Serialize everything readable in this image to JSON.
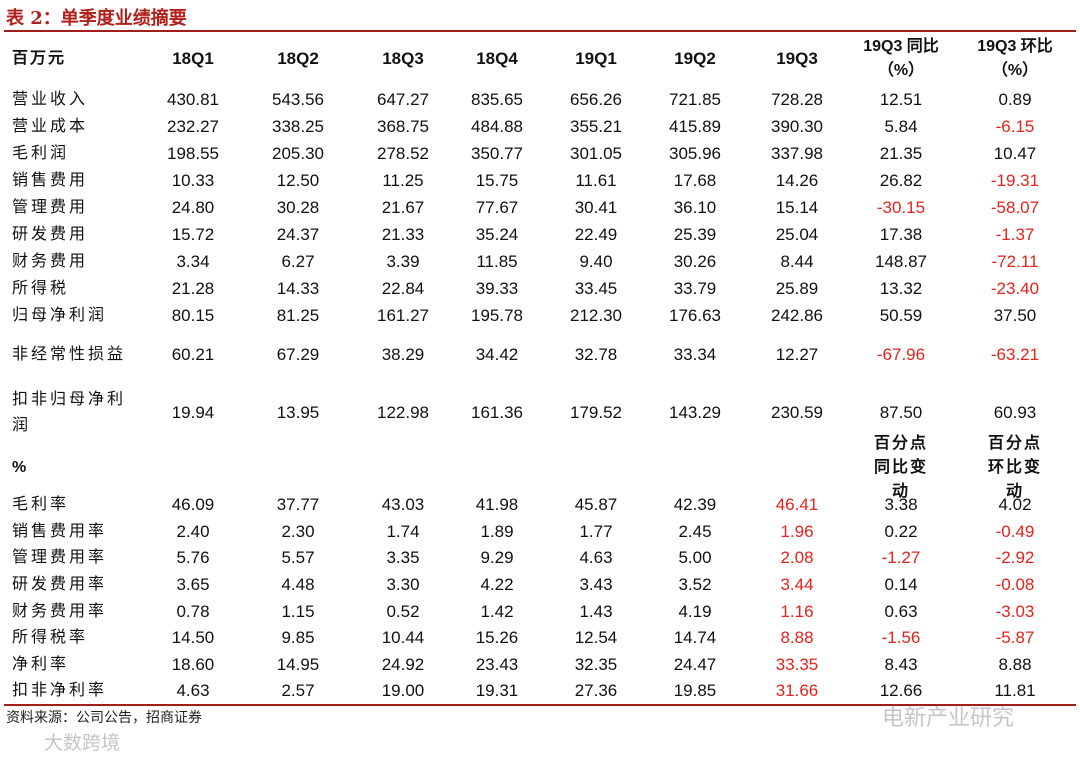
{
  "title": "表 2：单季度业绩摘要",
  "table": {
    "header": [
      "百万元",
      "18Q1",
      "18Q2",
      "18Q3",
      "18Q4",
      "19Q1",
      "19Q2",
      "19Q3",
      "19Q3 同比（%）",
      "19Q3 环比（%）"
    ],
    "rows": [
      [
        "营业收入",
        "430.81",
        "543.56",
        "647.27",
        "835.65",
        "656.26",
        "721.85",
        "728.28",
        "12.51",
        "0.89"
      ],
      [
        "营业成本",
        "232.27",
        "338.25",
        "368.75",
        "484.88",
        "355.21",
        "415.89",
        "390.30",
        "5.84",
        "-6.15"
      ],
      [
        "毛利润",
        "198.55",
        "205.30",
        "278.52",
        "350.77",
        "301.05",
        "305.96",
        "337.98",
        "21.35",
        "10.47"
      ],
      [
        "销售费用",
        "10.33",
        "12.50",
        "11.25",
        "15.75",
        "11.61",
        "17.68",
        "14.26",
        "26.82",
        "-19.31"
      ],
      [
        "管理费用",
        "24.80",
        "30.28",
        "21.67",
        "77.67",
        "30.41",
        "36.10",
        "15.14",
        "-30.15",
        "-58.07"
      ],
      [
        "研发费用",
        "15.72",
        "24.37",
        "21.33",
        "35.24",
        "22.49",
        "25.39",
        "25.04",
        "17.38",
        "-1.37"
      ],
      [
        "财务费用",
        "3.34",
        "6.27",
        "3.39",
        "11.85",
        "9.40",
        "30.26",
        "8.44",
        "148.87",
        "-72.11"
      ],
      [
        "所得税",
        "21.28",
        "14.33",
        "22.84",
        "39.33",
        "33.45",
        "33.79",
        "25.89",
        "13.32",
        "-23.40"
      ],
      [
        "归母净利润",
        "80.15",
        "81.25",
        "161.27",
        "195.78",
        "212.30",
        "176.63",
        "242.86",
        "50.59",
        "37.50"
      ],
      [
        "非经常性损益",
        "60.21",
        "67.29",
        "38.29",
        "34.42",
        "32.78",
        "33.34",
        "12.27",
        "-67.96",
        "-63.21"
      ],
      [
        "扣非归母净利润",
        "19.94",
        "13.95",
        "122.98",
        "161.36",
        "179.52",
        "143.29",
        "230.59",
        "87.50",
        "60.93"
      ]
    ]
  },
  "ratio_table": {
    "header": [
      "%",
      "百分点同比变动",
      "百分点环比变动"
    ],
    "rows": [
      [
        "毛利率",
        "46.09",
        "37.77",
        "43.03",
        "41.98",
        "45.87",
        "42.39",
        "46.41",
        "3.38",
        "4.02"
      ],
      [
        "销售费用率",
        "2.40",
        "2.30",
        "1.74",
        "1.89",
        "1.77",
        "2.45",
        "1.96",
        "0.22",
        "-0.49"
      ],
      [
        "管理费用率",
        "5.76",
        "5.57",
        "3.35",
        "9.29",
        "4.63",
        "5.00",
        "2.08",
        "-1.27",
        "-2.92"
      ],
      [
        "研发费用率",
        "3.65",
        "4.48",
        "3.30",
        "4.22",
        "3.43",
        "3.52",
        "3.44",
        "0.14",
        "-0.08"
      ],
      [
        "财务费用率",
        "0.78",
        "1.15",
        "0.52",
        "1.42",
        "1.43",
        "4.19",
        "1.16",
        "0.63",
        "-3.03"
      ],
      [
        "所得税率",
        "14.50",
        "9.85",
        "10.44",
        "15.26",
        "12.54",
        "14.74",
        "8.88",
        "-1.56",
        "-5.87"
      ],
      [
        "净利率",
        "18.60",
        "14.95",
        "24.92",
        "23.43",
        "32.35",
        "24.47",
        "33.35",
        "8.43",
        "8.88"
      ],
      [
        "扣非净利率",
        "4.63",
        "2.57",
        "19.00",
        "19.31",
        "27.36",
        "19.85",
        "31.66",
        "12.66",
        "11.81"
      ]
    ],
    "highlight_columns": [
      7
    ],
    "highlight_color": "#e5231b"
  },
  "negative_color": "#e5231b",
  "source": "资料来源：公司公告，招商证券",
  "watermarks": [
    "电新产业研究",
    "大数跨境"
  ]
}
